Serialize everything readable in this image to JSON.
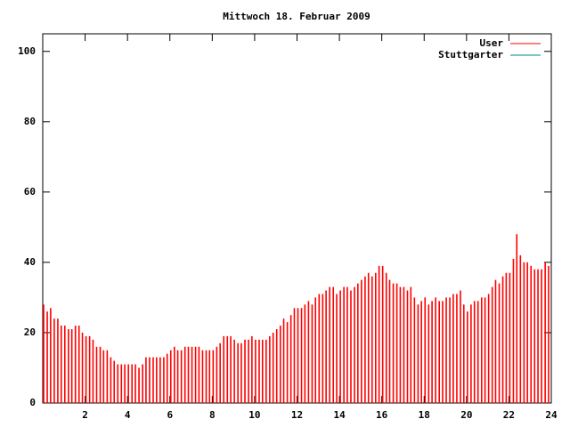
{
  "chart_data": {
    "type": "impulses",
    "title": "Mittwoch 18. Februar 2009",
    "x": [
      0,
      0.17,
      0.33,
      0.5,
      0.67,
      0.83,
      1,
      1.17,
      1.33,
      1.5,
      1.67,
      1.83,
      2,
      2.17,
      2.33,
      2.5,
      2.67,
      2.83,
      3,
      3.17,
      3.33,
      3.5,
      3.67,
      3.83,
      4,
      4.17,
      4.33,
      4.5,
      4.67,
      4.83,
      5,
      5.17,
      5.33,
      5.5,
      5.67,
      5.83,
      6,
      6.17,
      6.33,
      6.5,
      6.67,
      6.83,
      7,
      7.17,
      7.33,
      7.5,
      7.67,
      7.83,
      8,
      8.17,
      8.33,
      8.5,
      8.67,
      8.83,
      9,
      9.17,
      9.33,
      9.5,
      9.67,
      9.83,
      10,
      10.17,
      10.33,
      10.5,
      10.67,
      10.83,
      11,
      11.17,
      11.33,
      11.5,
      11.67,
      11.83,
      12,
      12.17,
      12.33,
      12.5,
      12.67,
      12.83,
      13,
      13.17,
      13.33,
      13.5,
      13.67,
      13.83,
      14,
      14.17,
      14.33,
      14.5,
      14.67,
      14.83,
      15,
      15.17,
      15.33,
      15.5,
      15.67,
      15.83,
      16,
      16.17,
      16.33,
      16.5,
      16.67,
      16.83,
      17,
      17.17,
      17.33,
      17.5,
      17.67,
      17.83,
      18,
      18.17,
      18.33,
      18.5,
      18.67,
      18.83,
      19,
      19.17,
      19.33,
      19.5,
      19.67,
      19.83,
      20,
      20.17,
      20.33,
      20.5,
      20.67,
      20.83,
      21,
      21.17,
      21.33,
      21.5,
      21.67,
      21.83,
      22,
      22.17,
      22.33,
      22.5,
      22.67,
      22.83,
      23,
      23.17,
      23.33,
      23.5,
      23.67,
      23.83
    ],
    "series": [
      {
        "name": "User",
        "color": "#ff0000",
        "values": [
          28,
          26,
          27,
          24,
          24,
          22,
          22,
          21,
          21,
          22,
          22,
          20,
          19,
          19,
          18,
          16,
          16,
          15,
          15,
          13,
          12,
          11,
          11,
          11,
          11,
          11,
          11,
          10,
          11,
          13,
          13,
          13,
          13,
          13,
          13,
          14,
          15,
          16,
          15,
          15,
          16,
          16,
          16,
          16,
          16,
          15,
          15,
          15,
          15,
          16,
          17,
          19,
          19,
          19,
          18,
          17,
          17,
          18,
          18,
          19,
          18,
          18,
          18,
          18,
          19,
          20,
          21,
          22,
          24,
          23,
          25,
          27,
          27,
          27,
          28,
          29,
          28,
          30,
          31,
          31,
          32,
          33,
          33,
          31,
          32,
          33,
          33,
          32,
          33,
          34,
          35,
          36,
          37,
          36,
          37,
          39,
          39,
          37,
          35,
          34,
          34,
          33,
          33,
          32,
          33,
          30,
          28,
          29,
          30,
          28,
          29,
          30,
          29,
          29,
          30,
          30,
          31,
          31,
          32,
          28,
          26,
          28,
          29,
          29,
          30,
          30,
          31,
          33,
          35,
          34,
          36,
          37,
          37,
          41,
          48,
          42,
          40,
          40,
          39,
          38,
          38,
          38,
          40,
          39
        ]
      },
      {
        "name": "Stuttgarter",
        "color": "#008b8b",
        "values": [
          null,
          null,
          null,
          null,
          null,
          null,
          null,
          null,
          null,
          null,
          null,
          null,
          null,
          null,
          null,
          null,
          null,
          null,
          null,
          null,
          null,
          null,
          null,
          null,
          null,
          null,
          null,
          null,
          null,
          null,
          null,
          null,
          null,
          null,
          null,
          null,
          null,
          null,
          null,
          null,
          null,
          null,
          null,
          null,
          null,
          null,
          null,
          null,
          null,
          null,
          null,
          null,
          null,
          null,
          null,
          null,
          null,
          null,
          null,
          null,
          null,
          null,
          null,
          null,
          null,
          null,
          null,
          null,
          null,
          null,
          null,
          null,
          null,
          null,
          null,
          null,
          null,
          null,
          null,
          null,
          null,
          null,
          null,
          null,
          null,
          null,
          null,
          null,
          null,
          null,
          null,
          null,
          null,
          null,
          null,
          null,
          null,
          null,
          null,
          null,
          null,
          null,
          null,
          null,
          null,
          null,
          null,
          null,
          null,
          null,
          null,
          null,
          null,
          null,
          null,
          null,
          null,
          null,
          null,
          null,
          null,
          null,
          null,
          null,
          null,
          null,
          null,
          null,
          null,
          null,
          null,
          null,
          null,
          null,
          null,
          null,
          null,
          null,
          null,
          null,
          null,
          null,
          null,
          null
        ]
      }
    ],
    "xlim": [
      0,
      24
    ],
    "xticks": [
      2,
      4,
      6,
      8,
      10,
      12,
      14,
      16,
      18,
      20,
      22,
      24
    ],
    "ylim": [
      0,
      105
    ],
    "yticks": [
      0,
      20,
      40,
      60,
      80,
      100
    ],
    "legend": "top-right"
  }
}
